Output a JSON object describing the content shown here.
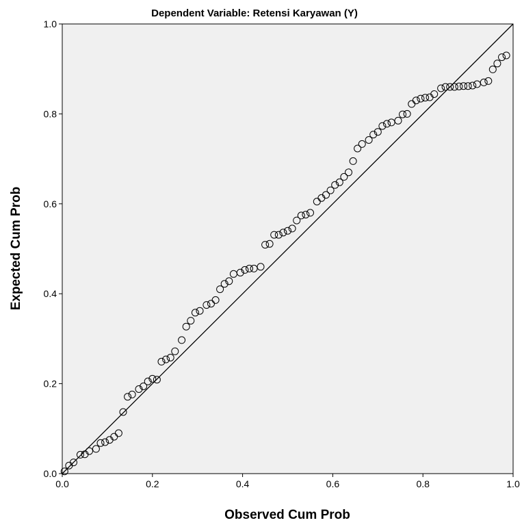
{
  "chart_data": {
    "type": "scatter",
    "title": "Dependent Variable: Retensi Karyawan (Y)",
    "xlabel": "Observed Cum Prob",
    "ylabel": "Expected Cum Prob",
    "xlim": [
      0.0,
      1.0
    ],
    "ylim": [
      0.0,
      1.0
    ],
    "xticks": [
      "0.0",
      "0.2",
      "0.4",
      "0.6",
      "0.8",
      "1.0"
    ],
    "yticks": [
      "0.0",
      "0.2",
      "0.4",
      "0.6",
      "0.8",
      "1.0"
    ],
    "grid": false,
    "plot_background": "#f0f0f0",
    "reference_line": {
      "from": [
        0,
        0
      ],
      "to": [
        1,
        1
      ]
    },
    "points": [
      [
        0.005,
        0.005
      ],
      [
        0.015,
        0.018
      ],
      [
        0.025,
        0.025
      ],
      [
        0.04,
        0.042
      ],
      [
        0.05,
        0.043
      ],
      [
        0.06,
        0.05
      ],
      [
        0.075,
        0.055
      ],
      [
        0.085,
        0.068
      ],
      [
        0.095,
        0.07
      ],
      [
        0.105,
        0.075
      ],
      [
        0.115,
        0.082
      ],
      [
        0.125,
        0.09
      ],
      [
        0.135,
        0.137
      ],
      [
        0.145,
        0.171
      ],
      [
        0.155,
        0.176
      ],
      [
        0.17,
        0.188
      ],
      [
        0.18,
        0.194
      ],
      [
        0.19,
        0.205
      ],
      [
        0.2,
        0.211
      ],
      [
        0.21,
        0.209
      ],
      [
        0.22,
        0.249
      ],
      [
        0.23,
        0.254
      ],
      [
        0.24,
        0.258
      ],
      [
        0.25,
        0.272
      ],
      [
        0.265,
        0.297
      ],
      [
        0.275,
        0.327
      ],
      [
        0.285,
        0.34
      ],
      [
        0.295,
        0.358
      ],
      [
        0.305,
        0.362
      ],
      [
        0.32,
        0.375
      ],
      [
        0.33,
        0.378
      ],
      [
        0.34,
        0.386
      ],
      [
        0.35,
        0.41
      ],
      [
        0.36,
        0.422
      ],
      [
        0.37,
        0.428
      ],
      [
        0.38,
        0.444
      ],
      [
        0.395,
        0.447
      ],
      [
        0.405,
        0.453
      ],
      [
        0.415,
        0.456
      ],
      [
        0.425,
        0.456
      ],
      [
        0.44,
        0.46
      ],
      [
        0.45,
        0.509
      ],
      [
        0.46,
        0.511
      ],
      [
        0.47,
        0.531
      ],
      [
        0.48,
        0.531
      ],
      [
        0.49,
        0.536
      ],
      [
        0.5,
        0.54
      ],
      [
        0.51,
        0.545
      ],
      [
        0.52,
        0.563
      ],
      [
        0.53,
        0.574
      ],
      [
        0.54,
        0.576
      ],
      [
        0.55,
        0.58
      ],
      [
        0.565,
        0.605
      ],
      [
        0.575,
        0.613
      ],
      [
        0.585,
        0.62
      ],
      [
        0.595,
        0.63
      ],
      [
        0.605,
        0.642
      ],
      [
        0.615,
        0.648
      ],
      [
        0.625,
        0.66
      ],
      [
        0.635,
        0.67
      ],
      [
        0.645,
        0.695
      ],
      [
        0.655,
        0.723
      ],
      [
        0.665,
        0.733
      ],
      [
        0.68,
        0.742
      ],
      [
        0.69,
        0.754
      ],
      [
        0.7,
        0.76
      ],
      [
        0.71,
        0.773
      ],
      [
        0.72,
        0.778
      ],
      [
        0.73,
        0.781
      ],
      [
        0.745,
        0.785
      ],
      [
        0.755,
        0.799
      ],
      [
        0.765,
        0.8
      ],
      [
        0.775,
        0.822
      ],
      [
        0.785,
        0.83
      ],
      [
        0.795,
        0.834
      ],
      [
        0.805,
        0.836
      ],
      [
        0.815,
        0.837
      ],
      [
        0.825,
        0.844
      ],
      [
        0.84,
        0.857
      ],
      [
        0.85,
        0.86
      ],
      [
        0.86,
        0.86
      ],
      [
        0.87,
        0.86
      ],
      [
        0.88,
        0.861
      ],
      [
        0.89,
        0.862
      ],
      [
        0.9,
        0.862
      ],
      [
        0.91,
        0.863
      ],
      [
        0.92,
        0.866
      ],
      [
        0.935,
        0.87
      ],
      [
        0.945,
        0.873
      ],
      [
        0.955,
        0.899
      ],
      [
        0.965,
        0.912
      ],
      [
        0.975,
        0.926
      ],
      [
        0.985,
        0.93
      ]
    ]
  }
}
